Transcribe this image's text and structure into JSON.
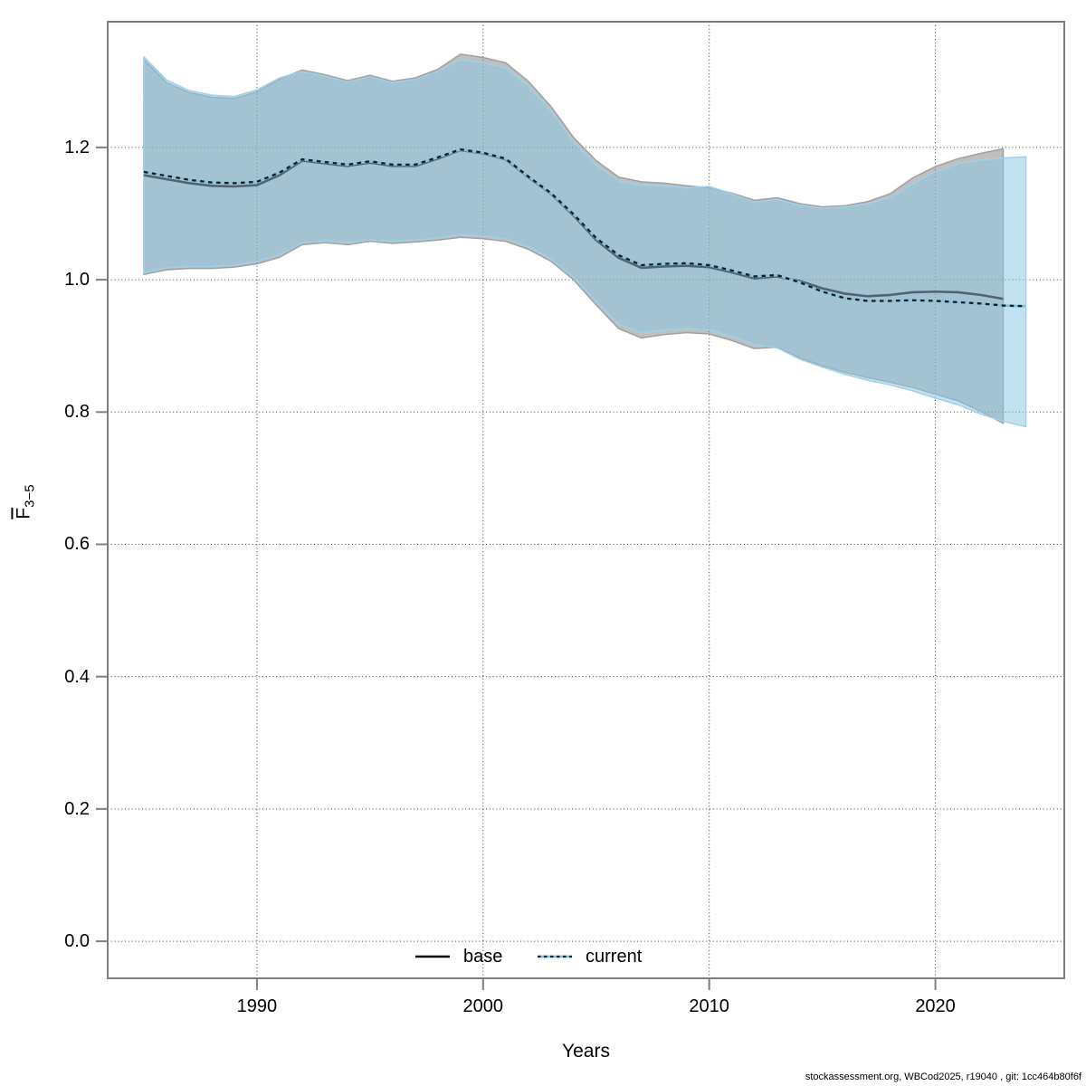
{
  "figure": {
    "xlabel": "Years",
    "ylabel_main": "F",
    "ylabel_sub": "3−5",
    "footer": "stockassessment.org, WBCod2025, r19040 , git: 1cc464b80f6f"
  },
  "legend": {
    "items": [
      {
        "label": "base",
        "line_style": "solid",
        "line_color": "#000000"
      },
      {
        "label": "current",
        "line_style": "dotted",
        "line_color": "#85c3e1"
      }
    ]
  },
  "colors": {
    "base_band_fill": "rgba(128,128,128,0.50)",
    "base_band_edge": "#a0a0a0",
    "current_band_fill": "rgba(139,199,229,0.52)",
    "current_band_edge": "#9fd0ea",
    "base_line": "#4f6470",
    "current_line_under": "#85c3e1",
    "current_line_dash": "#000000",
    "axis": "#7f7f7f",
    "grid": "#3a3a3a",
    "text": "#000000"
  },
  "chart_data": {
    "type": "area",
    "title": "",
    "xlabel": "Years",
    "ylabel": "Fbar(3-5)",
    "xlim": [
      1983.4,
      2025.7
    ],
    "ylim": [
      -0.056,
      1.39
    ],
    "x_ticks": [
      1990,
      2000,
      2010,
      2020
    ],
    "x_tick_labels": [
      "1990",
      "2000",
      "2010",
      "2020"
    ],
    "y_ticks": [
      0.0,
      0.2,
      0.4,
      0.6,
      0.8,
      1.0,
      1.2
    ],
    "y_tick_labels": [
      "0.0",
      "0.2",
      "0.4",
      "0.6",
      "0.8",
      "1.0",
      "1.2"
    ],
    "grid": true,
    "legend_position": "bottom-center",
    "series": [
      {
        "name": "base",
        "style": "band-with-solid-line",
        "years": [
          1985,
          1986,
          1987,
          1988,
          1989,
          1990,
          1991,
          1992,
          1993,
          1994,
          1995,
          1996,
          1997,
          1998,
          1999,
          2000,
          2001,
          2002,
          2003,
          2004,
          2005,
          2006,
          2007,
          2008,
          2009,
          2010,
          2011,
          2012,
          2013,
          2014,
          2015,
          2016,
          2017,
          2018,
          2019,
          2020,
          2021,
          2022,
          2023
        ],
        "mean": [
          1.158,
          1.152,
          1.146,
          1.142,
          1.141,
          1.143,
          1.158,
          1.18,
          1.176,
          1.172,
          1.177,
          1.172,
          1.172,
          1.183,
          1.196,
          1.191,
          1.182,
          1.155,
          1.13,
          1.097,
          1.06,
          1.033,
          1.018,
          1.02,
          1.021,
          1.019,
          1.011,
          1.002,
          1.005,
          0.998,
          0.987,
          0.979,
          0.975,
          0.977,
          0.981,
          0.982,
          0.981,
          0.977,
          0.971
        ],
        "lo": [
          1.008,
          1.015,
          1.017,
          1.017,
          1.019,
          1.024,
          1.034,
          1.053,
          1.056,
          1.053,
          1.058,
          1.055,
          1.057,
          1.06,
          1.064,
          1.062,
          1.058,
          1.046,
          1.028,
          1.0,
          0.962,
          0.926,
          0.912,
          0.917,
          0.92,
          0.918,
          0.908,
          0.896,
          0.898,
          0.882,
          0.87,
          0.86,
          0.852,
          0.845,
          0.837,
          0.827,
          0.817,
          0.801,
          0.783
        ],
        "hi": [
          1.333,
          1.298,
          1.283,
          1.276,
          1.274,
          1.284,
          1.303,
          1.317,
          1.31,
          1.301,
          1.309,
          1.3,
          1.305,
          1.318,
          1.341,
          1.336,
          1.328,
          1.3,
          1.262,
          1.215,
          1.18,
          1.155,
          1.148,
          1.146,
          1.142,
          1.139,
          1.131,
          1.12,
          1.124,
          1.115,
          1.11,
          1.112,
          1.118,
          1.13,
          1.154,
          1.171,
          1.183,
          1.191,
          1.198
        ]
      },
      {
        "name": "current",
        "style": "band-with-dotted-line",
        "years": [
          1985,
          1986,
          1987,
          1988,
          1989,
          1990,
          1991,
          1992,
          1993,
          1994,
          1995,
          1996,
          1997,
          1998,
          1999,
          2000,
          2001,
          2002,
          2003,
          2004,
          2005,
          2006,
          2007,
          2008,
          2009,
          2010,
          2011,
          2012,
          2013,
          2014,
          2015,
          2016,
          2017,
          2018,
          2019,
          2020,
          2021,
          2022,
          2023,
          2024
        ],
        "mean": [
          1.163,
          1.157,
          1.151,
          1.147,
          1.146,
          1.148,
          1.162,
          1.182,
          1.178,
          1.174,
          1.179,
          1.174,
          1.174,
          1.185,
          1.197,
          1.192,
          1.183,
          1.156,
          1.131,
          1.099,
          1.063,
          1.037,
          1.022,
          1.024,
          1.025,
          1.022,
          1.014,
          1.005,
          1.007,
          0.996,
          0.982,
          0.972,
          0.968,
          0.968,
          0.969,
          0.968,
          0.966,
          0.964,
          0.961,
          0.96
        ],
        "lo": [
          1.01,
          1.018,
          1.02,
          1.02,
          1.022,
          1.028,
          1.038,
          1.056,
          1.058,
          1.056,
          1.06,
          1.058,
          1.06,
          1.063,
          1.068,
          1.066,
          1.062,
          1.05,
          1.031,
          1.004,
          0.967,
          0.933,
          0.92,
          0.924,
          0.926,
          0.924,
          0.914,
          0.902,
          0.897,
          0.88,
          0.868,
          0.857,
          0.848,
          0.841,
          0.832,
          0.821,
          0.811,
          0.797,
          0.786,
          0.778
        ],
        "hi": [
          1.337,
          1.302,
          1.286,
          1.279,
          1.277,
          1.287,
          1.305,
          1.315,
          1.308,
          1.299,
          1.307,
          1.298,
          1.303,
          1.315,
          1.333,
          1.328,
          1.32,
          1.293,
          1.255,
          1.208,
          1.174,
          1.149,
          1.143,
          1.142,
          1.139,
          1.141,
          1.13,
          1.117,
          1.121,
          1.113,
          1.108,
          1.11,
          1.115,
          1.124,
          1.145,
          1.163,
          1.175,
          1.181,
          1.184,
          1.186
        ]
      }
    ]
  }
}
